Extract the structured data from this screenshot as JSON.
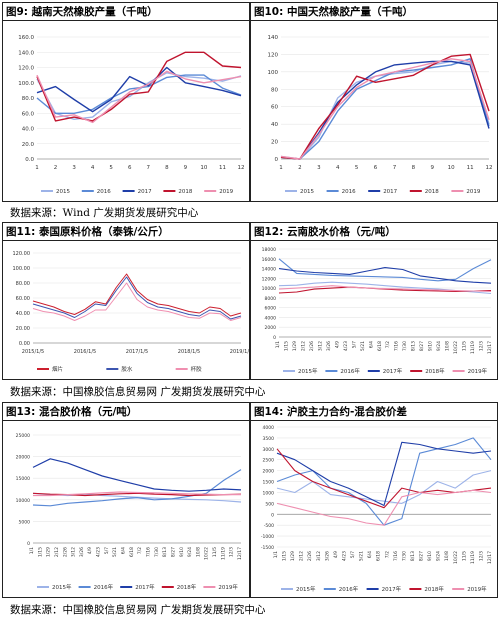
{
  "colors": {
    "s2015": "#9db3e8",
    "s2016": "#5b8ad6",
    "s2017": "#1f3ea8",
    "s2018": "#c0142e",
    "s2019": "#ee8fb0",
    "thai_smoke": "#cc1f2e",
    "thai_latex": "#3c55b0",
    "thai_cup": "#f08fb0"
  },
  "sources": [
    "数据来源：Wind   广发期货发展研究中心",
    "数据来源：中国橡胶信息贸易网 广发期货发展研究中心",
    "数据来源：中国橡胶信息贸易网 广发期货发展研究中心"
  ],
  "chart_data": [
    {
      "label": "图9:",
      "title": "越南天然橡胶产量（千吨）",
      "type": "line",
      "x": [
        1,
        2,
        3,
        4,
        5,
        6,
        7,
        8,
        9,
        10,
        11,
        12
      ],
      "ylim": [
        0,
        160
      ],
      "yticks": [
        "0.0",
        "20.0",
        "40.0",
        "60.0",
        "80.0",
        "100.0",
        "120.0",
        "140.0",
        "160.0"
      ],
      "xticks": [
        "1",
        "2",
        "3",
        "4",
        "5",
        "6",
        "7",
        "8",
        "9",
        "10",
        "11",
        "12"
      ],
      "series": [
        {
          "name": "2015",
          "values": [
            105,
            60,
            52,
            55,
            75,
            82,
            100,
            113,
            108,
            106,
            102,
            109
          ]
        },
        {
          "name": "2016",
          "values": [
            80,
            60,
            60,
            65,
            80,
            92,
            95,
            107,
            110,
            110,
            93,
            84
          ]
        },
        {
          "name": "2017",
          "values": [
            87,
            95,
            78,
            62,
            78,
            108,
            96,
            120,
            100,
            95,
            90,
            83
          ]
        },
        {
          "name": "2018",
          "values": [
            108,
            50,
            55,
            50,
            65,
            85,
            88,
            128,
            140,
            140,
            122,
            120
          ]
        },
        {
          "name": "2019",
          "values": [
            110,
            55,
            58,
            48,
            68,
            88,
            98,
            115,
            105,
            100,
            104,
            108
          ]
        }
      ]
    },
    {
      "label": "图10:",
      "title": "中国天然橡胶产量（千吨）",
      "type": "line",
      "x": [
        1,
        2,
        3,
        4,
        5,
        6,
        7,
        8,
        9,
        10,
        11,
        12
      ],
      "ylim": [
        0,
        140
      ],
      "yticks": [
        "0",
        "20",
        "40",
        "60",
        "80",
        "100",
        "120",
        "140"
      ],
      "xticks": [
        "1",
        "2",
        "3",
        "4",
        "5",
        "6",
        "7",
        "8",
        "9",
        "10",
        "11",
        "12"
      ],
      "series": [
        {
          "name": "2015",
          "values": [
            3,
            0,
            25,
            70,
            88,
            95,
            98,
            100,
            108,
            112,
            110,
            40
          ]
        },
        {
          "name": "2016",
          "values": [
            2,
            0,
            20,
            55,
            80,
            90,
            100,
            102,
            105,
            108,
            115,
            38
          ]
        },
        {
          "name": "2017",
          "values": [
            2,
            0,
            30,
            65,
            85,
            100,
            108,
            110,
            112,
            112,
            108,
            35
          ]
        },
        {
          "name": "2018",
          "values": [
            2,
            0,
            35,
            62,
            95,
            88,
            92,
            96,
            108,
            118,
            120,
            55
          ]
        },
        {
          "name": "2019",
          "values": [
            3,
            0,
            28,
            60,
            82,
            95,
            100,
            105,
            110,
            115,
            112,
            45
          ]
        }
      ]
    },
    {
      "label": "图11:",
      "title": "泰国原料价格（泰铢/公斤）",
      "type": "line",
      "ylim": [
        0,
        120
      ],
      "yticks": [
        "0.00",
        "20.00",
        "40.00",
        "60.00",
        "80.00",
        "100.00",
        "120.00"
      ],
      "xticks": [
        "2015/1/5",
        "2016/1/5",
        "2017/1/5",
        "2018/1/5",
        "2019/1/5"
      ],
      "x": [
        "2015-01",
        "2015-04",
        "2015-07",
        "2015-10",
        "2016-01",
        "2016-04",
        "2016-07",
        "2016-10",
        "2017-01",
        "2017-02",
        "2017-04",
        "2017-07",
        "2017-10",
        "2018-01",
        "2018-04",
        "2018-07",
        "2018-10",
        "2019-01",
        "2019-04",
        "2019-07",
        "2019-10"
      ],
      "series": [
        {
          "name": "烟片",
          "values": [
            56,
            52,
            48,
            42,
            38,
            45,
            55,
            52,
            74,
            92,
            70,
            58,
            52,
            50,
            46,
            42,
            40,
            48,
            46,
            36,
            40
          ]
        },
        {
          "name": "胶水",
          "values": [
            52,
            48,
            44,
            40,
            34,
            42,
            52,
            50,
            70,
            88,
            66,
            54,
            48,
            46,
            42,
            38,
            36,
            44,
            42,
            32,
            36
          ]
        },
        {
          "name": "杯胶",
          "values": [
            46,
            42,
            40,
            36,
            30,
            36,
            44,
            44,
            62,
            80,
            58,
            48,
            44,
            42,
            38,
            34,
            33,
            40,
            39,
            30,
            34
          ]
        }
      ]
    },
    {
      "label": "图12:",
      "title": "云南胶水价格（元/吨）",
      "type": "line",
      "ylim": [
        0,
        18000
      ],
      "yticks": [
        "0",
        "2000",
        "4000",
        "6000",
        "8000",
        "10000",
        "12000",
        "14000",
        "16000",
        "18000"
      ],
      "xticks": [
        "1/1",
        "1/15",
        "1/29",
        "2/12",
        "2/26",
        "3/12",
        "3/26",
        "4/9",
        "4/23",
        "5/7",
        "5/21",
        "6/4",
        "6/18",
        "7/2",
        "7/16",
        "7/30",
        "8/13",
        "8/27",
        "9/10",
        "9/24",
        "10/8",
        "10/22",
        "11/5",
        "11/19",
        "12/3",
        "12/17"
      ],
      "series": [
        {
          "name": "2015年",
          "values": [
            10500,
            10600,
            11000,
            11200,
            11000,
            10800,
            10500,
            10200,
            10000,
            9800,
            9500,
            9200,
            8900
          ]
        },
        {
          "name": "2016年",
          "values": [
            16000,
            13000,
            12800,
            12600,
            12500,
            12400,
            12300,
            12200,
            11800,
            11500,
            11800,
            14000,
            15800
          ]
        },
        {
          "name": "2017年",
          "values": [
            14000,
            13500,
            13200,
            13000,
            12800,
            13500,
            14200,
            13800,
            12500,
            12000,
            11500,
            11200,
            11000
          ]
        },
        {
          "name": "2018年",
          "values": [
            9000,
            9200,
            9800,
            10000,
            10200,
            10000,
            9800,
            9600,
            9500,
            9400,
            9300,
            9400,
            9500
          ]
        },
        {
          "name": "2019年",
          "values": [
            9800,
            10000,
            10200,
            10500,
            10200,
            10000,
            9900,
            9800,
            9700,
            9600,
            9500,
            9400,
            9300
          ]
        }
      ]
    },
    {
      "label": "图13:",
      "title": "混合胶价格（元/吨）",
      "type": "line",
      "ylim": [
        0,
        25000
      ],
      "yticks": [
        "0",
        "5000",
        "10000",
        "15000",
        "20000",
        "25000"
      ],
      "xticks": [
        "1/1",
        "1/15",
        "1/29",
        "2/12",
        "2/26",
        "3/12",
        "3/26",
        "4/9",
        "4/23",
        "5/7",
        "5/21",
        "6/4",
        "6/18",
        "7/2",
        "7/16",
        "7/30",
        "8/13",
        "8/27",
        "9/10",
        "9/24",
        "10/8",
        "10/22",
        "11/5",
        "11/19",
        "12/3",
        "12/17"
      ],
      "series": [
        {
          "name": "2015年",
          "values": [
            11500,
            11200,
            11000,
            11300,
            11000,
            10800,
            10600,
            10400,
            10200,
            10100,
            10000,
            9800,
            9500
          ]
        },
        {
          "name": "2016年",
          "values": [
            8800,
            8600,
            9200,
            9500,
            9800,
            10200,
            10500,
            10000,
            10200,
            10800,
            11500,
            14500,
            17000
          ]
        },
        {
          "name": "2017年",
          "values": [
            17500,
            19500,
            18500,
            17000,
            15500,
            14500,
            13500,
            12500,
            12200,
            12000,
            12200,
            12500,
            12300
          ]
        },
        {
          "name": "2018年",
          "values": [
            11500,
            11300,
            11200,
            11000,
            11200,
            11400,
            11500,
            11300,
            11200,
            11000,
            11100,
            11200,
            11300
          ]
        },
        {
          "name": "2019年",
          "values": [
            11000,
            11000,
            11200,
            11400,
            11600,
            11800,
            11700,
            11600,
            11500,
            11400,
            11300,
            11200,
            11200
          ]
        }
      ]
    },
    {
      "label": "图14:",
      "title": "沪胶主力合约-混合胶价差",
      "type": "line",
      "ylim": [
        -1500,
        4000
      ],
      "yticks": [
        "-1500",
        "-1000",
        "-500",
        "0",
        "500",
        "1000",
        "1500",
        "2000",
        "2500",
        "3000",
        "3500",
        "4000"
      ],
      "xticks": [
        "1/1",
        "1/15",
        "1/29",
        "2/12",
        "2/26",
        "3/12",
        "3/26",
        "4/9",
        "4/23",
        "5/7",
        "5/21",
        "6/4",
        "6/18",
        "7/2",
        "7/16",
        "7/30",
        "8/13",
        "8/27",
        "9/10",
        "9/24",
        "10/8",
        "10/22",
        "11/5",
        "11/19",
        "12/3",
        "12/17"
      ],
      "series": [
        {
          "name": "2015年",
          "values": [
            1200,
            1000,
            1500,
            900,
            800,
            700,
            600,
            500,
            900,
            1500,
            1200,
            1800,
            2000
          ]
        },
        {
          "name": "2016年",
          "values": [
            1500,
            1800,
            2000,
            1200,
            1000,
            500,
            -500,
            -200,
            2800,
            3000,
            3200,
            3500,
            2500
          ]
        },
        {
          "name": "2017年",
          "values": [
            2800,
            2500,
            2000,
            1500,
            1200,
            800,
            400,
            3300,
            3200,
            3000,
            2900,
            2800,
            2900
          ]
        },
        {
          "name": "2018年",
          "values": [
            3000,
            2000,
            1500,
            1200,
            900,
            600,
            300,
            1200,
            1000,
            1100,
            1000,
            1100,
            1200
          ]
        },
        {
          "name": "2019年",
          "values": [
            500,
            300,
            100,
            -100,
            -200,
            -400,
            -500,
            800,
            1000,
            900,
            1000,
            1100,
            1000
          ]
        }
      ]
    }
  ]
}
